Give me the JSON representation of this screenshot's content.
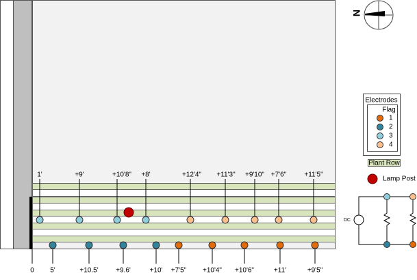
{
  "compass": {
    "north": "N"
  },
  "legend": {
    "title": "Electrodes",
    "flag_title": "Flag",
    "flags": [
      {
        "label": "1",
        "color": "#e36c0a"
      },
      {
        "label": "2",
        "color": "#31849b"
      },
      {
        "label": "3",
        "color": "#92cddc"
      },
      {
        "label": "4",
        "color": "#fac090"
      }
    ],
    "plant_row": "Plant Row",
    "lamp_post": "Lamp Post"
  },
  "top_labels": [
    "1'",
    "+9'",
    "+10'8\"",
    "+8'",
    "+12'4\"",
    "+11'3\"",
    "+9'10\"",
    "+7'6\"",
    "+11'5\""
  ],
  "bottom_labels": [
    "0",
    "5'",
    "+10.5'",
    "+9.6'",
    "+10'",
    "+7'5\"",
    "+10'4\"",
    "+10'6\"",
    "+11'",
    "+9'5\""
  ],
  "circuit": {
    "source": "DC"
  }
}
